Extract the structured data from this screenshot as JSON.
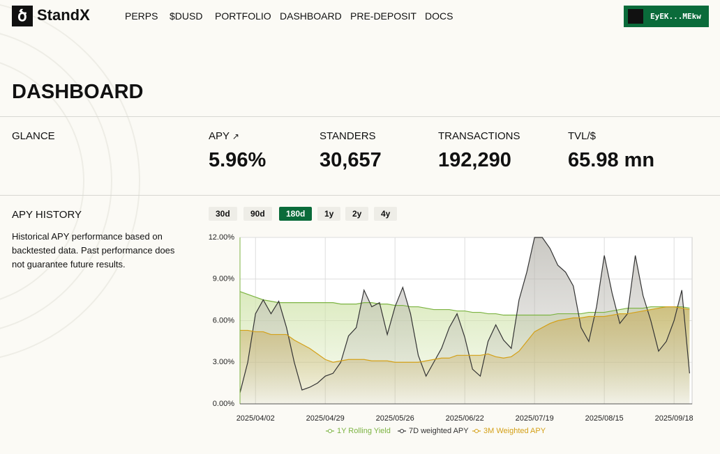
{
  "nav": {
    "logo": "StandX",
    "links": [
      "PERPS",
      "$DUSD",
      "PORTFOLIO",
      "DASHBOARD",
      "PRE-DEPOSIT",
      "DOCS"
    ],
    "wallet": "EyEK...MEkw"
  },
  "page_title": "DASHBOARD",
  "glance": {
    "label": "GLANCE",
    "stats": [
      {
        "label": "APY",
        "value": "5.96%"
      },
      {
        "label": "STANDERS",
        "value": "30,657"
      },
      {
        "label": "TRANSACTIONS",
        "value": "192,290"
      },
      {
        "label": "TVL/$",
        "value": "65.98 mn"
      }
    ]
  },
  "apy_history": {
    "title": "APY HISTORY",
    "description": "Historical APY performance based on backtested data. Past performance does not guarantee future results.",
    "ranges": [
      "30d",
      "90d",
      "180d",
      "1y",
      "2y",
      "4y"
    ],
    "selected_range": 2,
    "chart": {
      "type": "line",
      "categories": [
        null,
        null,
        "2025/04/02",
        null,
        null,
        null,
        null,
        null,
        null,
        null,
        null,
        "2025/04/29",
        null,
        null,
        null,
        null,
        null,
        null,
        null,
        null,
        "2025/05/26",
        null,
        null,
        null,
        null,
        null,
        null,
        null,
        null,
        "2025/06/22",
        null,
        null,
        null,
        null,
        null,
        null,
        null,
        null,
        "2025/07/19",
        null,
        null,
        null,
        null,
        null,
        null,
        null,
        null,
        "2025/08/15",
        null,
        null,
        null,
        null,
        null,
        null,
        null,
        null,
        "2025/09/18",
        null,
        null
      ],
      "series": [
        {
          "name": "1Y Rolling Yield",
          "color": "#7cb342",
          "fill": "#cfe3a8",
          "values": [
            8.1,
            7.9,
            7.7,
            7.5,
            7.4,
            7.3,
            7.3,
            7.3,
            7.3,
            7.3,
            7.3,
            7.3,
            7.3,
            7.2,
            7.2,
            7.2,
            7.3,
            7.3,
            7.2,
            7.2,
            7.1,
            7.1,
            7.0,
            7.0,
            6.9,
            6.8,
            6.8,
            6.8,
            6.7,
            6.7,
            6.6,
            6.6,
            6.5,
            6.5,
            6.4,
            6.4,
            6.4,
            6.4,
            6.4,
            6.4,
            6.4,
            6.5,
            6.5,
            6.5,
            6.5,
            6.6,
            6.6,
            6.6,
            6.7,
            6.8,
            6.9,
            6.9,
            6.9,
            7.0,
            7.0,
            7.0,
            7.0,
            7.0,
            6.9
          ]
        },
        {
          "name": "7D weighted APY",
          "color": "#333333",
          "fill": "#b9b7b0",
          "values": [
            0.8,
            3,
            6.5,
            7.5,
            6.5,
            7.4,
            5.5,
            3,
            1,
            1.2,
            1.5,
            2,
            2.2,
            3,
            4.9,
            5.5,
            8.2,
            7,
            7.3,
            5,
            7,
            8.4,
            6.5,
            3.5,
            2,
            3,
            4,
            5.5,
            6.5,
            4.8,
            2.5,
            2,
            4.5,
            5.7,
            4.6,
            4,
            7.5,
            9.5,
            12,
            12,
            11.2,
            10,
            9.5,
            8.5,
            5.5,
            4.5,
            7,
            10.7,
            8,
            5.8,
            6.5,
            10.7,
            7.8,
            6,
            3.8,
            4.5,
            6,
            8.2,
            2.2
          ]
        },
        {
          "name": "3M Weighted APY",
          "color": "#d4a017",
          "fill": "#c9b26a",
          "values": [
            5.3,
            5.3,
            5.2,
            5.2,
            5.0,
            5.0,
            5.0,
            4.6,
            4.3,
            4.0,
            3.6,
            3.2,
            3.0,
            3.1,
            3.2,
            3.2,
            3.2,
            3.1,
            3.1,
            3.1,
            3.0,
            3.0,
            3.0,
            3.0,
            3.1,
            3.2,
            3.3,
            3.3,
            3.5,
            3.5,
            3.5,
            3.5,
            3.6,
            3.4,
            3.3,
            3.4,
            3.8,
            4.5,
            5.2,
            5.5,
            5.8,
            6.0,
            6.1,
            6.2,
            6.2,
            6.3,
            6.3,
            6.3,
            6.4,
            6.5,
            6.5,
            6.6,
            6.7,
            6.8,
            6.9,
            7.0,
            7.0,
            6.9,
            6.8
          ]
        }
      ],
      "ylim": [
        0,
        12
      ],
      "yticks": [
        {
          "value": 0,
          "label": "0.00%"
        },
        {
          "value": 3,
          "label": "3.00%"
        },
        {
          "value": 6,
          "label": "6.00%"
        },
        {
          "value": 9,
          "label": "9.00%"
        },
        {
          "value": 12,
          "label": "12.00%"
        }
      ],
      "grid": true,
      "legend": "bottom"
    }
  }
}
